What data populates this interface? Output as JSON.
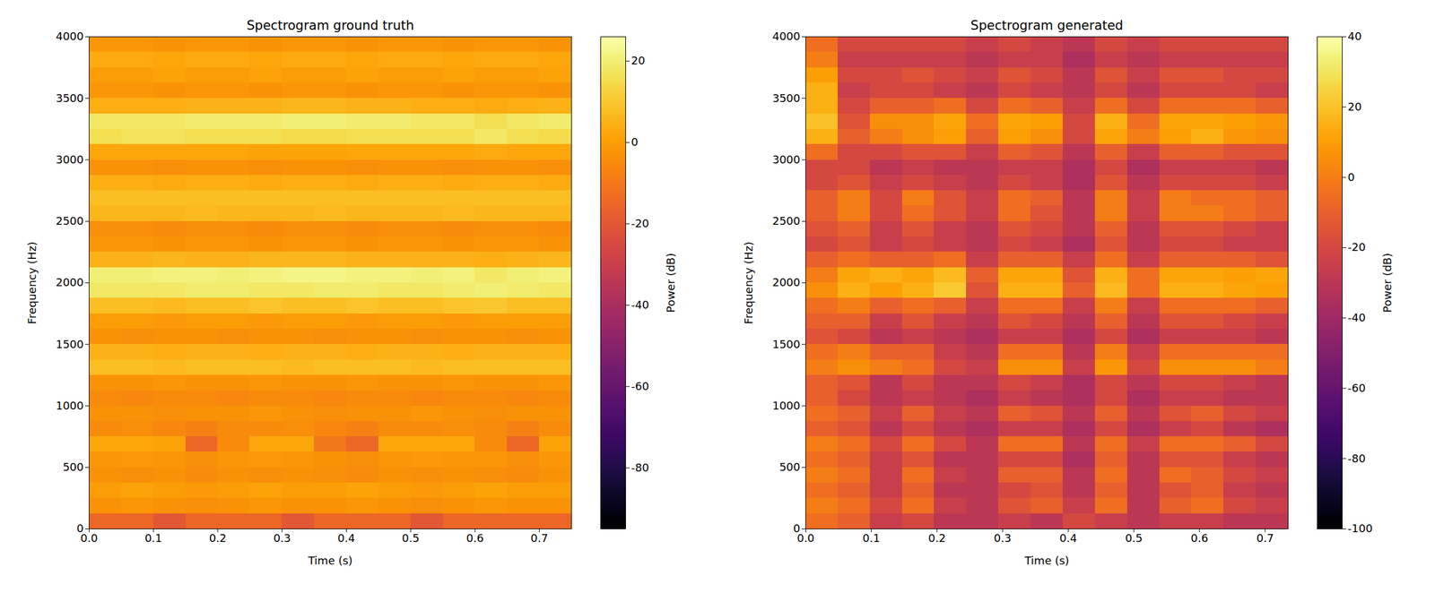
{
  "chart_data": [
    {
      "type": "heatmap",
      "title": "Spectrogram ground truth",
      "x_label": "Time (s)",
      "y_label": "Frequency (Hz)",
      "xlim": [
        0,
        0.75
      ],
      "ylim": [
        0,
        4000
      ],
      "xticks": [
        {
          "value": 0,
          "label": "0.0"
        },
        0.1,
        0.2,
        0.3,
        0.4,
        0.5,
        0.6,
        0.7
      ],
      "yticks": [
        0,
        500,
        1000,
        1500,
        2000,
        2500,
        3000,
        3500,
        4000
      ],
      "color": "inferno",
      "x_edges": [
        0,
        0.05,
        0.1,
        0.15,
        0.2,
        0.25,
        0.3,
        0.35,
        0.4,
        0.45,
        0.5,
        0.55,
        0.6,
        0.65,
        0.7,
        0.75
      ],
      "y_edges": [
        0,
        125,
        250,
        375,
        500,
        625,
        750,
        875,
        1000,
        1125,
        1250,
        1375,
        1500,
        1625,
        1750,
        1875,
        2000,
        2125,
        2250,
        2375,
        2500,
        2625,
        2750,
        2875,
        3000,
        3125,
        3250,
        3375,
        3500,
        3625,
        3750,
        3875,
        4000
      ],
      "cells": [
        [
          -15,
          -15,
          -20,
          -15,
          -15,
          -15,
          -20,
          -15,
          -15,
          -15,
          -20,
          -15,
          -15,
          -15,
          -15
        ],
        [
          -3,
          -2,
          -3,
          -4,
          -3,
          -2,
          -3,
          -3,
          -2,
          -3,
          -4,
          -3,
          -2,
          -3,
          -3
        ],
        [
          0,
          1,
          0,
          -1,
          0,
          1,
          0,
          0,
          1,
          0,
          -1,
          0,
          1,
          0,
          0
        ],
        [
          -3,
          -4,
          -3,
          -5,
          -3,
          -4,
          -3,
          -4,
          -5,
          -3,
          -4,
          -3,
          -4,
          -5,
          -3
        ],
        [
          -2,
          -1,
          -2,
          -4,
          -2,
          -1,
          -2,
          -3,
          -4,
          -2,
          -1,
          -2,
          -2,
          -4,
          -2
        ],
        [
          2,
          2,
          1,
          -15,
          -5,
          2,
          2,
          -10,
          -15,
          2,
          2,
          2,
          -5,
          -15,
          1
        ],
        [
          -5,
          -4,
          -6,
          -8,
          -5,
          -5,
          -4,
          -6,
          -8,
          -5,
          -5,
          -4,
          -5,
          -8,
          -5
        ],
        [
          -3,
          -3,
          -4,
          -3,
          -3,
          -2,
          -3,
          -4,
          -3,
          -3,
          -2,
          -3,
          -4,
          -3,
          -3
        ],
        [
          -5,
          -6,
          -5,
          -5,
          -6,
          -5,
          -5,
          -6,
          -5,
          -5,
          -6,
          -5,
          -5,
          -6,
          -5
        ],
        [
          -3,
          -3,
          -2,
          -3,
          -3,
          -2,
          -3,
          -3,
          -2,
          -3,
          -3,
          -2,
          -3,
          -3,
          -2
        ],
        [
          8,
          8,
          7,
          8,
          8,
          8,
          7,
          8,
          8,
          8,
          7,
          8,
          8,
          8,
          8
        ],
        [
          5,
          5,
          4,
          5,
          5,
          4,
          5,
          5,
          4,
          5,
          5,
          4,
          5,
          5,
          5
        ],
        [
          -3,
          -4,
          -3,
          -3,
          -4,
          -3,
          -3,
          -4,
          -3,
          -3,
          -4,
          -3,
          -3,
          -4,
          -3
        ],
        [
          0,
          0,
          -1,
          0,
          0,
          -1,
          0,
          0,
          -1,
          0,
          0,
          -1,
          0,
          0,
          0
        ],
        [
          8,
          8,
          7,
          8,
          8,
          9,
          8,
          8,
          9,
          8,
          8,
          9,
          10,
          8,
          8
        ],
        [
          18,
          18,
          18,
          19,
          19,
          18,
          18,
          19,
          19,
          18,
          18,
          19,
          20,
          19,
          18
        ],
        [
          20,
          20,
          21,
          21,
          20,
          21,
          22,
          22,
          21,
          21,
          20,
          21,
          18,
          20,
          21
        ],
        [
          5,
          5,
          6,
          5,
          5,
          6,
          6,
          6,
          5,
          5,
          5,
          5,
          4,
          5,
          6
        ],
        [
          -2,
          -2,
          -3,
          -2,
          -2,
          -3,
          -2,
          -2,
          -3,
          -2,
          -2,
          -3,
          -2,
          -2,
          -3
        ],
        [
          -4,
          -4,
          -5,
          -4,
          -4,
          -5,
          -4,
          -4,
          -5,
          -4,
          -4,
          -5,
          -4,
          -4,
          -5
        ],
        [
          6,
          6,
          6,
          7,
          6,
          6,
          6,
          7,
          6,
          6,
          6,
          7,
          6,
          6,
          6
        ],
        [
          8,
          8,
          8,
          8,
          8,
          8,
          8,
          8,
          8,
          8,
          8,
          8,
          8,
          8,
          8
        ],
        [
          4,
          4,
          3,
          4,
          4,
          3,
          4,
          4,
          3,
          4,
          4,
          3,
          4,
          4,
          3
        ],
        [
          -3,
          -3,
          -4,
          -3,
          -3,
          -4,
          -3,
          -3,
          -4,
          -3,
          -3,
          -4,
          -3,
          -3,
          -4
        ],
        [
          2,
          2,
          2,
          2,
          2,
          1,
          1,
          1,
          2,
          2,
          2,
          2,
          3,
          2,
          2
        ],
        [
          16,
          17,
          17,
          16,
          16,
          16,
          15,
          15,
          16,
          16,
          16,
          16,
          18,
          16,
          15
        ],
        [
          18,
          18,
          18,
          19,
          19,
          19,
          20,
          20,
          19,
          19,
          18,
          18,
          16,
          18,
          19
        ],
        [
          4,
          4,
          4,
          5,
          5,
          5,
          6,
          6,
          5,
          5,
          4,
          4,
          3,
          4,
          5
        ],
        [
          -2,
          -2,
          -3,
          -2,
          -2,
          -3,
          -2,
          -2,
          -3,
          -2,
          -2,
          -3,
          -2,
          -2,
          -3
        ],
        [
          0,
          0,
          1,
          0,
          0,
          1,
          0,
          0,
          1,
          0,
          0,
          1,
          0,
          0,
          1
        ],
        [
          3,
          3,
          2,
          3,
          3,
          2,
          3,
          3,
          2,
          3,
          3,
          2,
          3,
          3,
          2
        ],
        [
          -2,
          -2,
          -3,
          -2,
          -2,
          -3,
          -2,
          -2,
          -3,
          -2,
          -2,
          -3,
          -2,
          -2,
          -3
        ]
      ],
      "colorbar": {
        "label": "Power (dB)",
        "range": [
          -95,
          26
        ],
        "ticks": [
          -80,
          -60,
          -40,
          -20,
          0,
          20
        ]
      }
    },
    {
      "type": "heatmap",
      "title": "Spectrogram generated",
      "x_label": "Time (s)",
      "y_label": "Frequency (Hz)",
      "xlim": [
        0,
        0.735
      ],
      "ylim": [
        0,
        4000
      ],
      "xticks": [
        {
          "value": 0,
          "label": "0.0"
        },
        0.1,
        0.2,
        0.3,
        0.4,
        0.5,
        0.6,
        0.7
      ],
      "yticks": [
        0,
        500,
        1000,
        1500,
        2000,
        2500,
        3000,
        3500,
        4000
      ],
      "color": "inferno",
      "x_edges": [
        0,
        0.049,
        0.098,
        0.147,
        0.196,
        0.245,
        0.294,
        0.343,
        0.392,
        0.441,
        0.49,
        0.539,
        0.588,
        0.637,
        0.686,
        0.735
      ],
      "y_edges": [
        0,
        125,
        250,
        375,
        500,
        625,
        750,
        875,
        1000,
        1125,
        1250,
        1375,
        1500,
        1625,
        1750,
        1875,
        2000,
        2125,
        2250,
        2375,
        2500,
        2625,
        2750,
        2875,
        3000,
        3125,
        3250,
        3375,
        3500,
        3625,
        3750,
        3875,
        4000
      ],
      "cells": [
        [
          -5,
          -10,
          -25,
          -20,
          -30,
          -30,
          -25,
          -30,
          -20,
          -25,
          -30,
          -25,
          -25,
          -30,
          -30
        ],
        [
          0,
          -5,
          -20,
          -5,
          -25,
          -30,
          -15,
          -10,
          -25,
          -5,
          -30,
          -10,
          -5,
          -20,
          -25
        ],
        [
          -5,
          -10,
          -25,
          -10,
          -30,
          -30,
          -20,
          -15,
          -30,
          -10,
          -30,
          -15,
          -10,
          -25,
          -30
        ],
        [
          0,
          -5,
          -25,
          -5,
          -25,
          -30,
          -10,
          -10,
          -30,
          -5,
          -30,
          -5,
          -10,
          -20,
          -25
        ],
        [
          -5,
          -10,
          -25,
          -15,
          -30,
          -30,
          -20,
          -20,
          -35,
          -10,
          -30,
          -15,
          -15,
          -25,
          -30
        ],
        [
          0,
          -5,
          -20,
          -5,
          -20,
          -30,
          -5,
          -5,
          -30,
          -5,
          -25,
          -5,
          -5,
          -10,
          -20
        ],
        [
          -10,
          -15,
          -30,
          -20,
          -30,
          -35,
          -25,
          -25,
          -35,
          -20,
          -35,
          -25,
          -20,
          -30,
          -35
        ],
        [
          -5,
          -10,
          -25,
          -10,
          -25,
          -30,
          -10,
          -15,
          -30,
          -10,
          -30,
          -15,
          -10,
          -20,
          -25
        ],
        [
          -10,
          -20,
          -30,
          -25,
          -30,
          -35,
          -25,
          -30,
          -35,
          -20,
          -35,
          -25,
          -25,
          -30,
          -30
        ],
        [
          -10,
          -15,
          -30,
          -20,
          -30,
          -30,
          -20,
          -25,
          -35,
          -20,
          -30,
          -20,
          -20,
          -25,
          -30
        ],
        [
          0,
          5,
          0,
          -5,
          -20,
          -25,
          5,
          5,
          -25,
          8,
          -20,
          5,
          5,
          5,
          0
        ],
        [
          -5,
          0,
          -10,
          -10,
          -25,
          -30,
          -5,
          -5,
          -30,
          0,
          -25,
          -5,
          -5,
          -5,
          -5
        ],
        [
          -15,
          -20,
          -30,
          -25,
          -30,
          -35,
          -25,
          -25,
          -35,
          -20,
          -35,
          -25,
          -25,
          -25,
          -30
        ],
        [
          -10,
          -10,
          -25,
          -15,
          -25,
          -30,
          -15,
          -20,
          -30,
          -10,
          -30,
          -15,
          -15,
          -20,
          -25
        ],
        [
          -5,
          0,
          -10,
          -5,
          -10,
          -25,
          -5,
          -5,
          -25,
          0,
          -25,
          -5,
          -5,
          -5,
          -10
        ],
        [
          5,
          15,
          10,
          15,
          22,
          -15,
          15,
          15,
          -10,
          18,
          -5,
          15,
          15,
          12,
          10
        ],
        [
          0,
          12,
          15,
          12,
          18,
          -10,
          12,
          12,
          -15,
          15,
          -5,
          12,
          12,
          10,
          12
        ],
        [
          -10,
          -5,
          -10,
          -10,
          -5,
          -25,
          -10,
          -10,
          -25,
          -5,
          -25,
          -10,
          -10,
          -10,
          -15
        ],
        [
          -20,
          -15,
          -25,
          -20,
          -25,
          -30,
          -20,
          -25,
          -35,
          -15,
          -30,
          -20,
          -20,
          -25,
          -25
        ],
        [
          -15,
          -10,
          -25,
          -15,
          -25,
          -30,
          -15,
          -20,
          -30,
          -10,
          -30,
          -15,
          -15,
          -20,
          -25
        ],
        [
          -10,
          0,
          -20,
          -5,
          -15,
          -25,
          -5,
          -15,
          -30,
          0,
          -25,
          0,
          0,
          -5,
          -10
        ],
        [
          -10,
          0,
          -20,
          0,
          -15,
          -25,
          -5,
          -10,
          -30,
          0,
          -25,
          0,
          -5,
          -5,
          -10
        ],
        [
          -20,
          -15,
          -25,
          -20,
          -25,
          -30,
          -20,
          -25,
          -35,
          -15,
          -30,
          -20,
          -20,
          -20,
          -25
        ],
        [
          -20,
          -20,
          -30,
          -25,
          -30,
          -30,
          -25,
          -25,
          -35,
          -20,
          -35,
          -25,
          -25,
          -25,
          -30
        ],
        [
          -5,
          -20,
          -20,
          -15,
          -15,
          -25,
          -10,
          -15,
          -30,
          -10,
          -25,
          -10,
          -10,
          -15,
          -15
        ],
        [
          15,
          -10,
          0,
          5,
          10,
          -10,
          10,
          5,
          -20,
          12,
          0,
          10,
          15,
          8,
          5
        ],
        [
          20,
          -15,
          5,
          5,
          12,
          -5,
          12,
          10,
          -20,
          15,
          -5,
          12,
          12,
          10,
          8
        ],
        [
          15,
          -20,
          -10,
          -10,
          -5,
          -20,
          -5,
          -10,
          -25,
          -5,
          -20,
          -5,
          -5,
          -5,
          -10
        ],
        [
          15,
          -25,
          -20,
          -20,
          -25,
          -30,
          -20,
          -25,
          -30,
          -20,
          -30,
          -20,
          -20,
          -20,
          -25
        ],
        [
          10,
          -20,
          -20,
          -15,
          -20,
          -25,
          -15,
          -20,
          -30,
          -15,
          -25,
          -15,
          -15,
          -20,
          -20
        ],
        [
          0,
          -25,
          -25,
          -25,
          -25,
          -30,
          -25,
          -25,
          -35,
          -25,
          -30,
          -25,
          -25,
          -25,
          -25
        ],
        [
          -5,
          -20,
          -20,
          -20,
          -20,
          -25,
          -20,
          -25,
          -30,
          -20,
          -25,
          -20,
          -20,
          -20,
          -20
        ]
      ],
      "colorbar": {
        "label": "Power (dB)",
        "range": [
          -100,
          40
        ],
        "ticks": [
          -100,
          -80,
          -60,
          -40,
          -20,
          0,
          20,
          40
        ]
      }
    }
  ]
}
